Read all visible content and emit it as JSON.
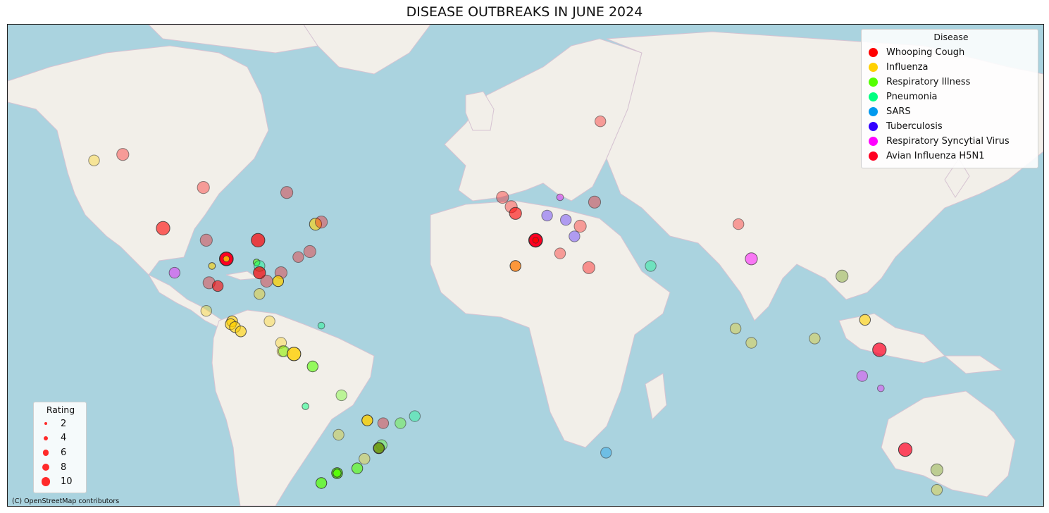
{
  "title": "DISEASE OUTBREAKS IN JUNE 2024",
  "attribution": "(C) OpenStreetMap contributors",
  "colors": {
    "ocean": "#aad3df",
    "land": "#f2efe9",
    "border": "#c9a9c4"
  },
  "disease_legend": {
    "title": "Disease",
    "items": [
      {
        "label": "Whooping Cough",
        "color": "#ff0000"
      },
      {
        "label": "Influenza",
        "color": "#ffd000"
      },
      {
        "label": "Respiratory Illness",
        "color": "#55ff00"
      },
      {
        "label": "Pneumonia",
        "color": "#00ff80"
      },
      {
        "label": "SARS",
        "color": "#0099ee"
      },
      {
        "label": "Tuberculosis",
        "color": "#3300ff"
      },
      {
        "label": "Respiratory Syncytial Virus",
        "color": "#ff00ff"
      },
      {
        "label": "Avian Influenza H5N1",
        "color": "#ff0022"
      }
    ]
  },
  "rating_legend": {
    "title": "Rating",
    "items": [
      {
        "label": "2",
        "value": 2
      },
      {
        "label": "4",
        "value": 4
      },
      {
        "label": "6",
        "value": 6
      },
      {
        "label": "8",
        "value": 8
      },
      {
        "label": "10",
        "value": 10
      }
    ]
  },
  "outbreaks": [
    {
      "disease": "Whooping Cough",
      "lon": 26,
      "lat": 68,
      "rating": 6,
      "opacity": 0.35
    },
    {
      "disease": "Influenza",
      "lon": -150,
      "lat": 62,
      "rating": 6,
      "opacity": 0.35
    },
    {
      "disease": "Whooping Cough",
      "lon": -140,
      "lat": 63,
      "rating": 7,
      "opacity": 0.35
    },
    {
      "disease": "Whooping Cough",
      "lon": -126,
      "lat": 48,
      "rating": 8,
      "opacity": 0.6
    },
    {
      "disease": "Whooping Cough",
      "lon": -112,
      "lat": 57,
      "rating": 7,
      "opacity": 0.35
    },
    {
      "disease": "Whooping Cough",
      "lon": -83,
      "lat": 56,
      "rating": 7,
      "opacity": 0.35
    },
    {
      "disease": "Whooping Cough",
      "lon": -93,
      "lat": 45,
      "rating": 8,
      "opacity": 0.7
    },
    {
      "disease": "Influenza",
      "lon": -73,
      "lat": 49,
      "rating": 7,
      "opacity": 0.6
    },
    {
      "disease": "Whooping Cough",
      "lon": -71,
      "lat": 49.5,
      "rating": 7,
      "opacity": 0.35
    },
    {
      "disease": "Whooping Cough",
      "lon": -75,
      "lat": 42,
      "rating": 7,
      "opacity": 0.35
    },
    {
      "disease": "Whooping Cough",
      "lon": -79,
      "lat": 40.5,
      "rating": 6,
      "opacity": 0.35
    },
    {
      "disease": "Whooping Cough",
      "lon": -111,
      "lat": 45,
      "rating": 7,
      "opacity": 0.35
    },
    {
      "disease": "Avian Influenza H5N1",
      "lon": -104,
      "lat": 40,
      "rating": 8,
      "opacity": 1.0,
      "inner": "Influenza"
    },
    {
      "disease": "Influenza",
      "lon": -109,
      "lat": 38,
      "rating": 3,
      "opacity": 0.6
    },
    {
      "disease": "Respiratory Syncytial Virus",
      "lon": -122,
      "lat": 36,
      "rating": 6,
      "opacity": 0.4
    },
    {
      "disease": "Respiratory Illness",
      "lon": -93.5,
      "lat": 39,
      "rating": 3,
      "opacity": 0.6
    },
    {
      "disease": "Pneumonia",
      "lon": -92.5,
      "lat": 38,
      "rating": 6,
      "opacity": 0.4
    },
    {
      "disease": "Whooping Cough",
      "lon": -92.5,
      "lat": 36,
      "rating": 7,
      "opacity": 0.7
    },
    {
      "disease": "Whooping Cough",
      "lon": -90,
      "lat": 33.5,
      "rating": 7,
      "opacity": 0.35
    },
    {
      "disease": "Whooping Cough",
      "lon": -85,
      "lat": 36,
      "rating": 7,
      "opacity": 0.35
    },
    {
      "disease": "Influenza",
      "lon": -86,
      "lat": 33.5,
      "rating": 6,
      "opacity": 0.75
    },
    {
      "disease": "Whooping Cough",
      "lon": -110,
      "lat": 33,
      "rating": 7,
      "opacity": 0.35
    },
    {
      "disease": "Whooping Cough",
      "lon": -107,
      "lat": 32,
      "rating": 6,
      "opacity": 0.6
    },
    {
      "disease": "Influenza",
      "lon": -92.5,
      "lat": 29.5,
      "rating": 6,
      "opacity": 0.4
    },
    {
      "disease": "Influenza",
      "lon": -111,
      "lat": 24,
      "rating": 6,
      "opacity": 0.35
    },
    {
      "disease": "Influenza",
      "lon": -102,
      "lat": 20.5,
      "rating": 6,
      "opacity": 0.6
    },
    {
      "disease": "Influenza",
      "lon": -102.5,
      "lat": 19.5,
      "rating": 6,
      "opacity": 0.6
    },
    {
      "disease": "Influenza",
      "lon": -101,
      "lat": 18.5,
      "rating": 6,
      "opacity": 0.6
    },
    {
      "disease": "Influenza",
      "lon": -99,
      "lat": 17,
      "rating": 6,
      "opacity": 0.6
    },
    {
      "disease": "Influenza",
      "lon": -89,
      "lat": 20.5,
      "rating": 6,
      "opacity": 0.35
    },
    {
      "disease": "Pneumonia",
      "lon": -71,
      "lat": 19,
      "rating": 3,
      "opacity": 0.4
    },
    {
      "disease": "Influenza",
      "lon": -85,
      "lat": 13,
      "rating": 6,
      "opacity": 0.35
    },
    {
      "disease": "Influenza",
      "lon": -84.5,
      "lat": 10,
      "rating": 6,
      "opacity": 0.35
    },
    {
      "disease": "Respiratory Illness",
      "lon": -84,
      "lat": 10,
      "rating": 6,
      "opacity": 0.4
    },
    {
      "disease": "Influenza",
      "lon": -80.5,
      "lat": 9,
      "rating": 8,
      "opacity": 0.8
    },
    {
      "disease": "Respiratory Illness",
      "lon": -74,
      "lat": 4.5,
      "rating": 6,
      "opacity": 0.6
    },
    {
      "disease": "Respiratory Illness",
      "lon": -64,
      "lat": -6,
      "rating": 6,
      "opacity": 0.35
    },
    {
      "disease": "Pneumonia",
      "lon": -76.5,
      "lat": -10,
      "rating": 3,
      "opacity": 0.5
    },
    {
      "disease": "Influenza",
      "lon": -55,
      "lat": -15,
      "rating": 6,
      "opacity": 0.8
    },
    {
      "disease": "Whooping Cough",
      "lon": -49.5,
      "lat": -16,
      "rating": 6,
      "opacity": 0.35
    },
    {
      "disease": "Respiratory Illness",
      "lon": -43.5,
      "lat": -16,
      "rating": 6,
      "opacity": 0.35
    },
    {
      "disease": "Pneumonia",
      "lon": -38.5,
      "lat": -13.5,
      "rating": 6,
      "opacity": 0.35
    },
    {
      "disease": "Influenza",
      "lon": -65,
      "lat": -20,
      "rating": 6,
      "opacity": 0.35
    },
    {
      "disease": "Respiratory Illness",
      "lon": -50,
      "lat": -23.5,
      "rating": 6,
      "opacity": 0.35
    },
    {
      "disease": "Respiratory Illness",
      "lon": -51,
      "lat": -24.5,
      "rating": 6,
      "opacity": 0.9,
      "dark": true
    },
    {
      "disease": "Influenza",
      "lon": -56,
      "lat": -28,
      "rating": 6,
      "opacity": 0.35
    },
    {
      "disease": "Respiratory Illness",
      "lon": -58.5,
      "lat": -31,
      "rating": 6,
      "opacity": 0.6
    },
    {
      "disease": "Respiratory Illness",
      "lon": -65.5,
      "lat": -32.5,
      "rating": 6,
      "opacity": 0.8
    },
    {
      "disease": "Respiratory Illness",
      "lon": -65.5,
      "lat": -32.5,
      "rating": 4,
      "opacity": 0.8
    },
    {
      "disease": "Respiratory Illness",
      "lon": -71,
      "lat": -35.5,
      "rating": 6,
      "opacity": 0.7
    },
    {
      "disease": "Whooping Cough",
      "lon": -8,
      "lat": 55,
      "rating": 7,
      "opacity": 0.35
    },
    {
      "disease": "Whooping Cough",
      "lon": -5,
      "lat": 53,
      "rating": 7,
      "opacity": 0.35
    },
    {
      "disease": "Whooping Cough",
      "lon": -3.5,
      "lat": 51.5,
      "rating": 7,
      "opacity": 0.6
    },
    {
      "disease": "Respiratory Syncytial Virus",
      "lon": 12,
      "lat": 55,
      "rating": 3,
      "opacity": 0.4
    },
    {
      "disease": "Tuberculosis",
      "lon": 7.5,
      "lat": 51,
      "rating": 6,
      "opacity": 0.35
    },
    {
      "disease": "Tuberculosis",
      "lon": 14,
      "lat": 50,
      "rating": 6,
      "opacity": 0.35
    },
    {
      "disease": "Whooping Cough",
      "lon": 24,
      "lat": 54,
      "rating": 7,
      "opacity": 0.35
    },
    {
      "disease": "Whooping Cough",
      "lon": 19,
      "lat": 48.5,
      "rating": 7,
      "opacity": 0.35
    },
    {
      "disease": "Tuberculosis",
      "lon": 17,
      "lat": 46,
      "rating": 6,
      "opacity": 0.35
    },
    {
      "disease": "Avian Influenza H5N1",
      "lon": 3.5,
      "lat": 45,
      "rating": 8,
      "opacity": 1.0,
      "inner": "Whooping Cough"
    },
    {
      "disease": "Whooping Cough",
      "lon": 12,
      "lat": 41.5,
      "rating": 6,
      "opacity": 0.35
    },
    {
      "disease": "Whooping Cough",
      "lon": -3.5,
      "lat": 38,
      "rating": 6,
      "opacity": 0.75,
      "orange": true
    },
    {
      "disease": "Whooping Cough",
      "lon": 22,
      "lat": 37.5,
      "rating": 7,
      "opacity": 0.4
    },
    {
      "disease": "Pneumonia",
      "lon": 43.5,
      "lat": 38,
      "rating": 6,
      "opacity": 0.35
    },
    {
      "disease": "Whooping Cough",
      "lon": 74,
      "lat": 49,
      "rating": 6,
      "opacity": 0.35
    },
    {
      "disease": "Respiratory Syncytial Virus",
      "lon": 78.5,
      "lat": 40,
      "rating": 7,
      "opacity": 0.5
    },
    {
      "disease": "Whooping Cough",
      "lon": 110,
      "lat": 35,
      "rating": 7,
      "opacity": 0.4,
      "dark": true
    },
    {
      "disease": "Influenza",
      "lon": 118,
      "lat": 21,
      "rating": 6,
      "opacity": 0.6
    },
    {
      "disease": "Influenza",
      "lon": 73,
      "lat": 18,
      "rating": 6,
      "opacity": 0.35
    },
    {
      "disease": "Influenza",
      "lon": 78.5,
      "lat": 13,
      "rating": 6,
      "opacity": 0.35
    },
    {
      "disease": "Influenza",
      "lon": 100.5,
      "lat": 14.5,
      "rating": 6,
      "opacity": 0.35
    },
    {
      "disease": "Avian Influenza H5N1",
      "lon": 123,
      "lat": 10.5,
      "rating": 8,
      "opacity": 0.7
    },
    {
      "disease": "Respiratory Syncytial Virus",
      "lon": 117,
      "lat": 1,
      "rating": 6,
      "opacity": 0.35
    },
    {
      "disease": "Respiratory Syncytial Virus",
      "lon": 123.5,
      "lat": -3.5,
      "rating": 3,
      "opacity": 0.35
    },
    {
      "disease": "SARS",
      "lon": 28,
      "lat": -26,
      "rating": 6,
      "opacity": 0.35
    },
    {
      "disease": "Avian Influenza H5N1",
      "lon": 132,
      "lat": -25,
      "rating": 8,
      "opacity": 0.7
    },
    {
      "disease": "Whooping Cough",
      "lon": 143,
      "lat": -31.5,
      "rating": 7,
      "opacity": 0.4,
      "dark": true
    },
    {
      "disease": "Influenza",
      "lon": 143,
      "lat": -37.5,
      "rating": 6,
      "opacity": 0.35
    }
  ]
}
